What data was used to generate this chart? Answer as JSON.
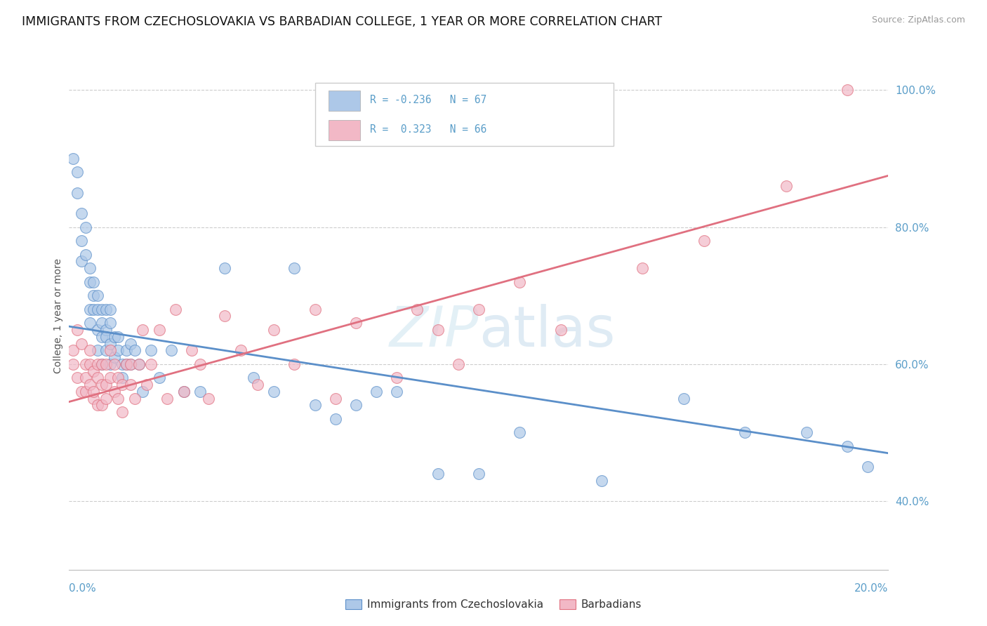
{
  "title": "IMMIGRANTS FROM CZECHOSLOVAKIA VS BARBADIAN COLLEGE, 1 YEAR OR MORE CORRELATION CHART",
  "source": "Source: ZipAtlas.com",
  "ylabel": "College, 1 year or more",
  "xmin": 0.0,
  "xmax": 0.2,
  "ymin": 0.3,
  "ymax": 1.04,
  "watermark": "ZIPatlas",
  "legend_entries": [
    {
      "label": "Immigrants from Czechoslovakia",
      "R": -0.236,
      "N": 67,
      "color": "#adc8e8"
    },
    {
      "label": "Barbadians",
      "R": 0.323,
      "N": 66,
      "color": "#f2b8c6"
    }
  ],
  "blue_line": {
    "x0": 0.0,
    "y0": 0.655,
    "x1": 0.2,
    "y1": 0.47
  },
  "pink_line": {
    "x0": 0.0,
    "y0": 0.545,
    "x1": 0.2,
    "y1": 0.875
  },
  "series_blue": {
    "line_color": "#5b8fc9",
    "marker_color": "#adc8e8",
    "x": [
      0.001,
      0.002,
      0.002,
      0.003,
      0.003,
      0.003,
      0.004,
      0.004,
      0.005,
      0.005,
      0.005,
      0.005,
      0.006,
      0.006,
      0.006,
      0.007,
      0.007,
      0.007,
      0.007,
      0.008,
      0.008,
      0.008,
      0.008,
      0.009,
      0.009,
      0.009,
      0.009,
      0.01,
      0.01,
      0.01,
      0.01,
      0.011,
      0.011,
      0.012,
      0.012,
      0.013,
      0.013,
      0.014,
      0.014,
      0.015,
      0.015,
      0.016,
      0.017,
      0.018,
      0.02,
      0.022,
      0.025,
      0.028,
      0.032,
      0.038,
      0.045,
      0.05,
      0.055,
      0.06,
      0.065,
      0.07,
      0.075,
      0.08,
      0.09,
      0.1,
      0.11,
      0.13,
      0.15,
      0.165,
      0.18,
      0.19,
      0.195
    ],
    "y": [
      0.9,
      0.85,
      0.88,
      0.82,
      0.78,
      0.75,
      0.8,
      0.76,
      0.74,
      0.72,
      0.68,
      0.66,
      0.7,
      0.72,
      0.68,
      0.7,
      0.68,
      0.65,
      0.62,
      0.66,
      0.68,
      0.64,
      0.6,
      0.65,
      0.62,
      0.68,
      0.64,
      0.66,
      0.63,
      0.68,
      0.6,
      0.64,
      0.61,
      0.62,
      0.64,
      0.6,
      0.58,
      0.62,
      0.6,
      0.63,
      0.6,
      0.62,
      0.6,
      0.56,
      0.62,
      0.58,
      0.62,
      0.56,
      0.56,
      0.74,
      0.58,
      0.56,
      0.74,
      0.54,
      0.52,
      0.54,
      0.56,
      0.56,
      0.44,
      0.44,
      0.5,
      0.43,
      0.55,
      0.5,
      0.5,
      0.48,
      0.45
    ]
  },
  "series_pink": {
    "line_color": "#e07080",
    "marker_color": "#f2b8c6",
    "x": [
      0.001,
      0.001,
      0.002,
      0.002,
      0.003,
      0.003,
      0.004,
      0.004,
      0.004,
      0.005,
      0.005,
      0.005,
      0.006,
      0.006,
      0.006,
      0.007,
      0.007,
      0.007,
      0.008,
      0.008,
      0.008,
      0.009,
      0.009,
      0.009,
      0.01,
      0.01,
      0.011,
      0.011,
      0.012,
      0.012,
      0.013,
      0.013,
      0.014,
      0.015,
      0.015,
      0.016,
      0.017,
      0.018,
      0.019,
      0.02,
      0.022,
      0.024,
      0.026,
      0.028,
      0.03,
      0.032,
      0.034,
      0.038,
      0.042,
      0.046,
      0.05,
      0.055,
      0.06,
      0.065,
      0.07,
      0.08,
      0.085,
      0.09,
      0.095,
      0.1,
      0.11,
      0.12,
      0.14,
      0.155,
      0.175,
      0.19
    ],
    "y": [
      0.62,
      0.6,
      0.58,
      0.65,
      0.56,
      0.63,
      0.6,
      0.56,
      0.58,
      0.57,
      0.6,
      0.62,
      0.55,
      0.59,
      0.56,
      0.58,
      0.6,
      0.54,
      0.57,
      0.6,
      0.54,
      0.6,
      0.57,
      0.55,
      0.58,
      0.62,
      0.56,
      0.6,
      0.55,
      0.58,
      0.57,
      0.53,
      0.6,
      0.57,
      0.6,
      0.55,
      0.6,
      0.65,
      0.57,
      0.6,
      0.65,
      0.55,
      0.68,
      0.56,
      0.62,
      0.6,
      0.55,
      0.67,
      0.62,
      0.57,
      0.65,
      0.6,
      0.68,
      0.55,
      0.66,
      0.58,
      0.68,
      0.65,
      0.6,
      0.68,
      0.72,
      0.65,
      0.74,
      0.78,
      0.86,
      1.0
    ]
  },
  "yticks": [
    0.4,
    0.6,
    0.8,
    1.0
  ],
  "ytick_labels": [
    "40.0%",
    "60.0%",
    "80.0%",
    "100.0%"
  ],
  "background_color": "#ffffff",
  "grid_color": "#cccccc"
}
